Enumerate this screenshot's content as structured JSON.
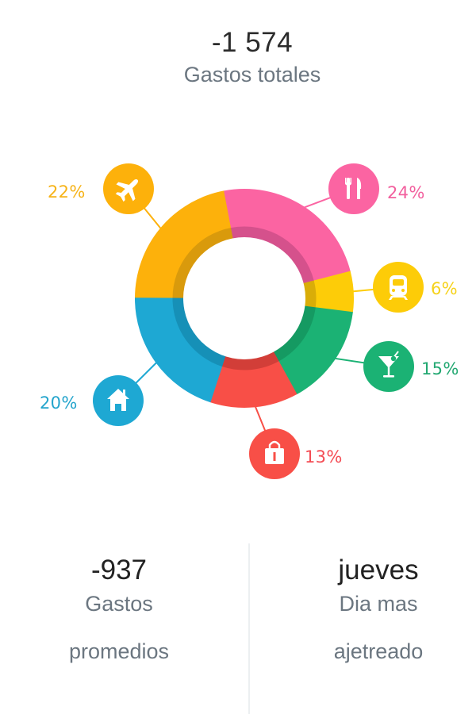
{
  "header": {
    "total_value": "-1 574",
    "total_label": "Gastos totales"
  },
  "chart_data": {
    "type": "pie",
    "subtype": "donut",
    "title": "Gastos totales",
    "center_value": "",
    "categories": [
      "Viajes",
      "Restaurantes",
      "Transporte",
      "Bebidas",
      "Compras",
      "Hogar"
    ],
    "icons": [
      "plane-icon",
      "cutlery-icon",
      "train-icon",
      "cocktail-icon",
      "shopping-bag-icon",
      "home-icon"
    ],
    "values": [
      22,
      24,
      6,
      15,
      13,
      20
    ],
    "labels": [
      "22%",
      "24%",
      "6%",
      "15%",
      "13%",
      "20%"
    ],
    "colors": [
      "#fdb10b",
      "#fb64a2",
      "#fdcc08",
      "#1bb274",
      "#f84f47",
      "#1ea8d3"
    ],
    "legend": "none",
    "unit": "%"
  },
  "segments": [
    {
      "name": "plane",
      "label": "22%",
      "color": "#fdb10b",
      "dark": "#d99a0c",
      "label_color": "#f6b318"
    },
    {
      "name": "cutlery",
      "label": "24%",
      "color": "#fb64a2",
      "dark": "#d5518c",
      "label_color": "#f2609e"
    },
    {
      "name": "train",
      "label": "6%",
      "color": "#fdcc08",
      "dark": "#d9ad08",
      "label_color": "#f6d21a"
    },
    {
      "name": "cocktail",
      "label": "15%",
      "color": "#1bb274",
      "dark": "#159a62",
      "label_color": "#23a872"
    },
    {
      "name": "bag",
      "label": "13%",
      "color": "#f84f47",
      "dark": "#d23e38",
      "label_color": "#f44c54"
    },
    {
      "name": "home",
      "label": "20%",
      "color": "#1ea8d3",
      "dark": "#1690b7",
      "label_color": "#23a4cc"
    }
  ],
  "stats": {
    "average": {
      "value": "-937",
      "label_line1": "Gastos",
      "label_line2": "promedios"
    },
    "busiest_day": {
      "value": "jueves",
      "label_line1": "Dia mas",
      "label_line2": "ajetreado"
    }
  }
}
